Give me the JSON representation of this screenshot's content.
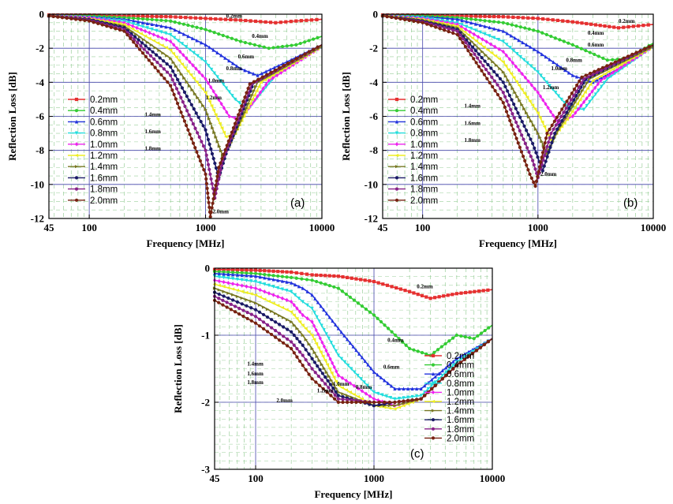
{
  "chart_data": [
    {
      "type": "line",
      "panel_label": "(a)",
      "xlabel": "Frequency [MHz]",
      "ylabel": "Reflection  Loss [dB]",
      "xscale": "log",
      "xlim": [
        45,
        10000
      ],
      "ylim": [
        -12,
        0
      ],
      "xticks": [
        "45",
        "100",
        "1000",
        "10000"
      ],
      "yticks": [
        "0",
        "-2",
        "-4",
        "-6",
        "-8",
        "-10",
        "-12"
      ],
      "grid": true,
      "legend_position": "left",
      "series": [
        {
          "name": "0.2mm",
          "color": "#e53030",
          "x": [
            45,
            100,
            200,
            500,
            1000,
            2000,
            4000,
            6000,
            10000
          ],
          "y": [
            -0.05,
            -0.05,
            -0.1,
            -0.15,
            -0.25,
            -0.35,
            -0.5,
            -0.4,
            -0.3
          ]
        },
        {
          "name": "0.4mm",
          "color": "#33cc33",
          "x": [
            45,
            100,
            200,
            500,
            1000,
            2000,
            3500,
            6000,
            10000
          ],
          "y": [
            -0.1,
            -0.1,
            -0.2,
            -0.4,
            -0.9,
            -1.6,
            -2.0,
            -1.8,
            -1.3
          ]
        },
        {
          "name": "0.6mm",
          "color": "#2233dd",
          "x": [
            45,
            100,
            200,
            500,
            1000,
            2000,
            2800,
            5000,
            10000
          ],
          "y": [
            -0.1,
            -0.15,
            -0.3,
            -0.8,
            -1.8,
            -3.2,
            -3.6,
            -2.8,
            -1.8
          ]
        },
        {
          "name": "0.8mm",
          "color": "#22dddd",
          "x": [
            45,
            100,
            200,
            500,
            1000,
            1800,
            2300,
            4000,
            10000
          ],
          "y": [
            -0.1,
            -0.2,
            -0.4,
            -1.2,
            -2.8,
            -5.0,
            -5.6,
            -3.6,
            -1.9
          ]
        },
        {
          "name": "1.0mm",
          "color": "#ee22ee",
          "x": [
            45,
            100,
            200,
            500,
            1000,
            1600,
            2000,
            3500,
            10000
          ],
          "y": [
            -0.1,
            -0.2,
            -0.5,
            -1.6,
            -3.8,
            -6.0,
            -6.2,
            -3.9,
            -1.9
          ]
        },
        {
          "name": "1.2mm",
          "color": "#eeee22",
          "x": [
            45,
            100,
            200,
            500,
            1000,
            1500,
            1800,
            3000,
            10000
          ],
          "y": [
            -0.1,
            -0.25,
            -0.6,
            -2.1,
            -4.6,
            -7.2,
            -7.0,
            -4.0,
            -1.9
          ]
        },
        {
          "name": "1.4mm",
          "color": "#777722",
          "x": [
            45,
            100,
            200,
            500,
            1000,
            1400,
            1600,
            2800,
            10000
          ],
          "y": [
            -0.1,
            -0.3,
            -0.7,
            -2.6,
            -5.6,
            -8.3,
            -7.8,
            -4.0,
            -1.9
          ]
        },
        {
          "name": "1.6mm",
          "color": "#1a1a66",
          "x": [
            45,
            100,
            200,
            500,
            1000,
            1300,
            1500,
            2600,
            10000
          ],
          "y": [
            -0.1,
            -0.3,
            -0.8,
            -3.1,
            -6.8,
            -9.6,
            -8.2,
            -4.0,
            -1.8
          ]
        },
        {
          "name": "1.8mm",
          "color": "#882288",
          "x": [
            45,
            100,
            200,
            500,
            1000,
            1200,
            1400,
            2500,
            10000
          ],
          "y": [
            -0.1,
            -0.35,
            -0.9,
            -3.6,
            -8.0,
            -10.8,
            -8.6,
            -4.1,
            -1.8
          ]
        },
        {
          "name": "2.0mm",
          "color": "#772211",
          "x": [
            45,
            100,
            200,
            500,
            1000,
            1100,
            1300,
            2400,
            10000
          ],
          "y": [
            -0.1,
            -0.4,
            -1.0,
            -4.2,
            -9.4,
            -11.9,
            -9.0,
            -4.1,
            -1.8
          ]
        }
      ],
      "annotations": [
        "0.2mm",
        "0.4mm",
        "0.6mm",
        "0.8mm",
        "1.0mm",
        "1.2mm",
        "1.4mm",
        "1.6mm",
        "1.8mm",
        "2.0mm"
      ]
    },
    {
      "type": "line",
      "panel_label": "(b)",
      "xlabel": "Frequency [MHz]",
      "ylabel": "Reflection  Loss [dB]",
      "xscale": "log",
      "xlim": [
        45,
        10000
      ],
      "ylim": [
        -12,
        0
      ],
      "xticks": [
        "45",
        "100",
        "1000",
        "10000"
      ],
      "yticks": [
        "0",
        "-2",
        "-4",
        "-6",
        "-8",
        "-10",
        "-12"
      ],
      "grid": true,
      "legend_position": "left",
      "series": [
        {
          "name": "0.2mm",
          "color": "#e53030",
          "x": [
            45,
            100,
            200,
            500,
            1000,
            2000,
            5000,
            10000
          ],
          "y": [
            -0.05,
            -0.05,
            -0.1,
            -0.15,
            -0.25,
            -0.45,
            -0.8,
            -0.6
          ]
        },
        {
          "name": "0.4mm",
          "color": "#33cc33",
          "x": [
            45,
            100,
            200,
            500,
            1000,
            2000,
            4000,
            6000,
            10000
          ],
          "y": [
            -0.1,
            -0.1,
            -0.2,
            -0.5,
            -1.0,
            -1.8,
            -2.7,
            -2.6,
            -1.7
          ]
        },
        {
          "name": "0.6mm",
          "color": "#2233dd",
          "x": [
            45,
            100,
            200,
            500,
            1000,
            2000,
            3000,
            5000,
            10000
          ],
          "y": [
            -0.1,
            -0.15,
            -0.3,
            -1.0,
            -2.2,
            -3.6,
            -4.0,
            -3.2,
            -1.8
          ]
        },
        {
          "name": "0.8mm",
          "color": "#22dddd",
          "x": [
            45,
            100,
            200,
            500,
            1000,
            1800,
            2500,
            4000,
            10000
          ],
          "y": [
            -0.1,
            -0.2,
            -0.5,
            -1.6,
            -3.4,
            -5.4,
            -5.6,
            -3.8,
            -1.9
          ]
        },
        {
          "name": "1.0mm",
          "color": "#ee22ee",
          "x": [
            45,
            100,
            200,
            500,
            1000,
            1500,
            2000,
            3500,
            10000
          ],
          "y": [
            -0.1,
            -0.25,
            -0.6,
            -2.2,
            -4.6,
            -6.4,
            -6.0,
            -3.9,
            -1.9
          ]
        },
        {
          "name": "1.2mm",
          "color": "#eeee22",
          "x": [
            45,
            100,
            200,
            500,
            1000,
            1300,
            1700,
            3000,
            10000
          ],
          "y": [
            -0.1,
            -0.3,
            -0.7,
            -2.8,
            -5.8,
            -7.4,
            -6.4,
            -3.9,
            -1.9
          ]
        },
        {
          "name": "1.4mm",
          "color": "#777722",
          "x": [
            45,
            100,
            200,
            500,
            1000,
            1200,
            1500,
            2800,
            10000
          ],
          "y": [
            -0.1,
            -0.35,
            -0.8,
            -3.4,
            -7.0,
            -8.2,
            -6.8,
            -3.8,
            -1.9
          ]
        },
        {
          "name": "1.6mm",
          "color": "#1a1a66",
          "x": [
            45,
            100,
            200,
            500,
            900,
            1100,
            1400,
            2600,
            10000
          ],
          "y": [
            -0.1,
            -0.4,
            -0.9,
            -4.0,
            -7.6,
            -9.2,
            -7.0,
            -3.8,
            -1.8
          ]
        },
        {
          "name": "1.8mm",
          "color": "#882288",
          "x": [
            45,
            100,
            200,
            500,
            900,
            1000,
            1300,
            2500,
            10000
          ],
          "y": [
            -0.1,
            -0.45,
            -1.0,
            -4.6,
            -8.6,
            -9.6,
            -7.0,
            -3.8,
            -1.8
          ]
        },
        {
          "name": "2.0mm",
          "color": "#772211",
          "x": [
            45,
            100,
            200,
            500,
            850,
            950,
            1200,
            2400,
            10000
          ],
          "y": [
            -0.1,
            -0.5,
            -1.2,
            -5.2,
            -9.4,
            -10.1,
            -7.0,
            -3.7,
            -1.8
          ]
        }
      ],
      "annotations": [
        "0.2mm",
        "0.4mm",
        "0.6mm",
        "0.8mm",
        "1.0mm",
        "1.2mm",
        "1.4mm",
        "1.6mm",
        "1.8mm",
        "2.0mm"
      ]
    },
    {
      "type": "line",
      "panel_label": "(c)",
      "xlabel": "Frequency [MHz]",
      "ylabel": "Reflection  Loss [dB]",
      "xscale": "log",
      "xlim": [
        45,
        10000
      ],
      "ylim": [
        -3,
        0
      ],
      "xticks": [
        "45",
        "100",
        "1000",
        "10000"
      ],
      "yticks": [
        "0",
        "-1",
        "-2",
        "-3"
      ],
      "grid": true,
      "legend_position": "right",
      "series": [
        {
          "name": "0.2mm",
          "color": "#e53030",
          "x": [
            45,
            100,
            200,
            300,
            500,
            1000,
            2000,
            3000,
            5000,
            10000
          ],
          "y": [
            -0.02,
            -0.03,
            -0.06,
            -0.1,
            -0.12,
            -0.2,
            -0.35,
            -0.45,
            -0.38,
            -0.32
          ]
        },
        {
          "name": "0.4mm",
          "color": "#33cc33",
          "x": [
            45,
            100,
            200,
            300,
            500,
            1000,
            2000,
            3000,
            5000,
            7000,
            10000
          ],
          "y": [
            -0.05,
            -0.08,
            -0.14,
            -0.18,
            -0.3,
            -0.7,
            -1.2,
            -1.3,
            -1.0,
            -1.05,
            -0.85
          ]
        },
        {
          "name": "0.6mm",
          "color": "#2233dd",
          "x": [
            45,
            100,
            200,
            250,
            300,
            500,
            1000,
            1500,
            2500,
            5000,
            10000
          ],
          "y": [
            -0.08,
            -0.12,
            -0.22,
            -0.3,
            -0.4,
            -0.9,
            -1.55,
            -1.8,
            -1.8,
            -1.35,
            -1.05
          ]
        },
        {
          "name": "0.8mm",
          "color": "#22dddd",
          "x": [
            45,
            100,
            200,
            250,
            300,
            500,
            1000,
            1500,
            2500,
            5000,
            10000
          ],
          "y": [
            -0.12,
            -0.2,
            -0.35,
            -0.5,
            -0.6,
            -1.3,
            -1.85,
            -1.95,
            -1.9,
            -1.4,
            -1.05
          ]
        },
        {
          "name": "1.0mm",
          "color": "#ee22ee",
          "x": [
            45,
            100,
            200,
            250,
            300,
            500,
            1000,
            1500,
            2500,
            5000,
            10000
          ],
          "y": [
            -0.18,
            -0.3,
            -0.5,
            -0.7,
            -0.8,
            -1.6,
            -1.95,
            -2.05,
            -1.95,
            -1.45,
            -1.05
          ]
        },
        {
          "name": "1.2mm",
          "color": "#eeee22",
          "x": [
            45,
            100,
            200,
            250,
            300,
            500,
            1000,
            1500,
            2500,
            5000,
            10000
          ],
          "y": [
            -0.24,
            -0.4,
            -0.65,
            -0.85,
            -1.0,
            -1.75,
            -2.05,
            -2.1,
            -1.95,
            -1.45,
            -1.05
          ]
        },
        {
          "name": "1.4mm",
          "color": "#777722",
          "x": [
            45,
            100,
            200,
            250,
            300,
            500,
            1000,
            1500,
            2500,
            5000,
            10000
          ],
          "y": [
            -0.3,
            -0.52,
            -0.8,
            -1.0,
            -1.2,
            -1.85,
            -2.05,
            -2.05,
            -1.95,
            -1.45,
            -1.05
          ]
        },
        {
          "name": "1.6mm",
          "color": "#1a1a66",
          "x": [
            45,
            100,
            200,
            250,
            300,
            500,
            1000,
            1500,
            2500,
            5000,
            10000
          ],
          "y": [
            -0.36,
            -0.62,
            -0.95,
            -1.15,
            -1.35,
            -1.9,
            -2.05,
            -2.0,
            -1.95,
            -1.45,
            -1.05
          ]
        },
        {
          "name": "1.8mm",
          "color": "#882288",
          "x": [
            45,
            100,
            200,
            250,
            300,
            500,
            1000,
            1500,
            2500,
            5000,
            10000
          ],
          "y": [
            -0.42,
            -0.72,
            -1.1,
            -1.3,
            -1.5,
            -1.95,
            -2.0,
            -2.0,
            -1.95,
            -1.45,
            -1.05
          ]
        },
        {
          "name": "2.0mm",
          "color": "#772211",
          "x": [
            45,
            100,
            200,
            250,
            300,
            500,
            1000,
            1500,
            2500,
            5000,
            10000
          ],
          "y": [
            -0.48,
            -0.82,
            -1.2,
            -1.45,
            -1.65,
            -2.0,
            -2.0,
            -2.0,
            -1.95,
            -1.45,
            -1.05
          ]
        }
      ],
      "annotations": [
        "0.2mm",
        "0.4mm",
        "0.6mm",
        "0.8mm",
        "1.0mm",
        "1.2mm",
        "1.4mm",
        "1.6mm",
        "1.8mm",
        "2.0mm"
      ]
    }
  ]
}
